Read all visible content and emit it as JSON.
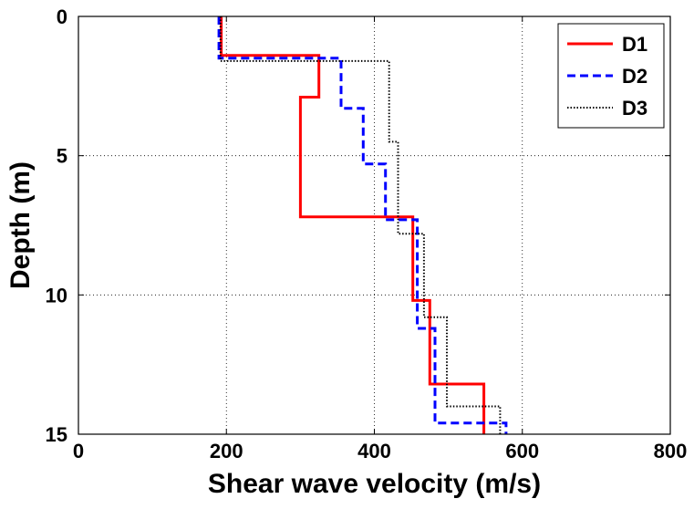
{
  "chart_data": {
    "type": "line",
    "title": "",
    "xlabel": "Shear wave velocity (m/s)",
    "ylabel": "Depth (m)",
    "xlim": [
      0,
      800
    ],
    "ylim": [
      0,
      15
    ],
    "y_reversed": true,
    "x_ticks": [
      "0",
      "200",
      "400",
      "600",
      "800"
    ],
    "y_ticks": [
      "0",
      "5",
      "10",
      "15"
    ],
    "grid": true,
    "legend_position": "top-right",
    "series": [
      {
        "name": "D1",
        "color": "#ff0000",
        "dash": "solid",
        "points": [
          [
            193,
            0
          ],
          [
            193,
            1.4
          ],
          [
            325,
            1.4
          ],
          [
            325,
            2.9
          ],
          [
            300,
            2.9
          ],
          [
            300,
            7.2
          ],
          [
            452,
            7.2
          ],
          [
            452,
            10.2
          ],
          [
            475,
            10.2
          ],
          [
            475,
            13.2
          ],
          [
            548,
            13.2
          ],
          [
            548,
            15
          ]
        ]
      },
      {
        "name": "D2",
        "color": "#0000ff",
        "dash": "dashed",
        "points": [
          [
            190,
            0
          ],
          [
            190,
            1.5
          ],
          [
            355,
            1.5
          ],
          [
            355,
            3.3
          ],
          [
            385,
            3.3
          ],
          [
            385,
            5.3
          ],
          [
            415,
            5.3
          ],
          [
            415,
            7.3
          ],
          [
            458,
            7.3
          ],
          [
            458,
            11.2
          ],
          [
            482,
            11.2
          ],
          [
            482,
            14.6
          ],
          [
            578,
            14.6
          ],
          [
            578,
            15
          ]
        ]
      },
      {
        "name": "D3",
        "color": "#000000",
        "dash": "dotted",
        "points": [
          [
            192,
            0
          ],
          [
            192,
            1.6
          ],
          [
            420,
            1.6
          ],
          [
            420,
            4.5
          ],
          [
            432,
            4.5
          ],
          [
            432,
            7.8
          ],
          [
            467,
            7.8
          ],
          [
            467,
            10.8
          ],
          [
            498,
            10.8
          ],
          [
            498,
            14.0
          ],
          [
            570,
            14.0
          ],
          [
            570,
            15
          ]
        ]
      }
    ]
  }
}
